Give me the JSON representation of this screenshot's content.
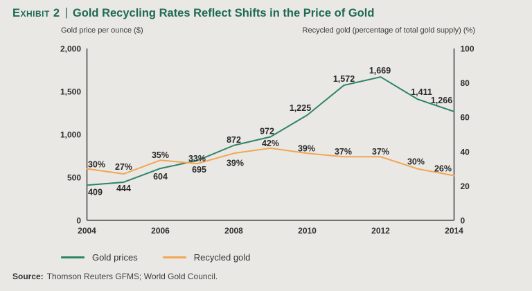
{
  "header": {
    "exhibit_label": "Exhibit 2",
    "separator": "|",
    "title": "Gold Recycling Rates Reflect Shifts in the Price of Gold"
  },
  "axis_titles": {
    "left": "Gold price per ounce ($)",
    "right": "Recycled gold (percentage of total gold supply) (%)"
  },
  "chart_data": {
    "type": "line",
    "title": "Gold Recycling Rates Reflect Shifts in the Price of Gold",
    "x": [
      2004,
      2005,
      2006,
      2007,
      2008,
      2009,
      2010,
      2011,
      2012,
      2013,
      2014
    ],
    "x_ticks": [
      2004,
      2006,
      2008,
      2010,
      2012,
      2014
    ],
    "grid": false,
    "legend_position": "bottom",
    "left_axis": {
      "label": "Gold price per ounce ($)",
      "min": 0,
      "max": 2000,
      "tick_values": [
        2000,
        1500,
        1000,
        500,
        0
      ],
      "ticks": [
        "2,000",
        "1,500",
        "1,000",
        "500",
        "0"
      ]
    },
    "right_axis": {
      "label": "Recycled gold (percentage of total gold supply) (%)",
      "min": 0,
      "max": 100,
      "tick_values": [
        100,
        80,
        60,
        40,
        20,
        0
      ],
      "ticks": [
        "100",
        "80",
        "60",
        "40",
        "20",
        "0"
      ]
    },
    "series": [
      {
        "name": "Gold prices",
        "axis": "left",
        "color": "#2E8566",
        "values": [
          409,
          444,
          604,
          695,
          872,
          972,
          1225,
          1572,
          1669,
          1411,
          1266
        ],
        "labels": [
          "409",
          "444",
          "604",
          "695",
          "872",
          "972",
          "1,225",
          "1,572",
          "1,669",
          "1,411",
          "1,266"
        ],
        "label_offsets": [
          [
            12,
            14
          ],
          [
            0,
            13
          ],
          [
            0,
            16
          ],
          [
            3,
            17
          ],
          [
            0,
            -4
          ],
          [
            -5,
            -4
          ],
          [
            -10,
            -6
          ],
          [
            0,
            -5
          ],
          [
            -1,
            -5
          ],
          [
            6,
            -6
          ],
          [
            -18,
            -12
          ]
        ]
      },
      {
        "name": "Recycled gold",
        "axis": "right",
        "color": "#F2A654",
        "values": [
          30,
          27,
          35,
          33,
          39,
          42,
          39,
          37,
          37,
          30,
          26
        ],
        "labels": [
          "30%",
          "27%",
          "35%",
          "33%",
          "39%",
          "42%",
          "39%",
          "37%",
          "37%",
          "30%",
          "26%"
        ],
        "label_offsets": [
          [
            14,
            -2
          ],
          [
            0,
            -6
          ],
          [
            0,
            -3
          ],
          [
            0,
            -3
          ],
          [
            2,
            18
          ],
          [
            0,
            -3
          ],
          [
            -1,
            -3
          ],
          [
            -1,
            -3
          ],
          [
            0,
            -3
          ],
          [
            -2,
            -6
          ],
          [
            -16,
            -6
          ]
        ]
      }
    ]
  },
  "legend": [
    {
      "label": "Gold prices",
      "color": "#2E8566"
    },
    {
      "label": "Recycled gold",
      "color": "#F2A654"
    }
  ],
  "source": {
    "prefix": "Source:",
    "text": "Thomson Reuters GFMS; World Gold Council."
  },
  "colors": {
    "background": "#E9E8E5",
    "title": "#1E6A52",
    "text": "#2E2E2E",
    "axis": "#4A4A4A"
  }
}
